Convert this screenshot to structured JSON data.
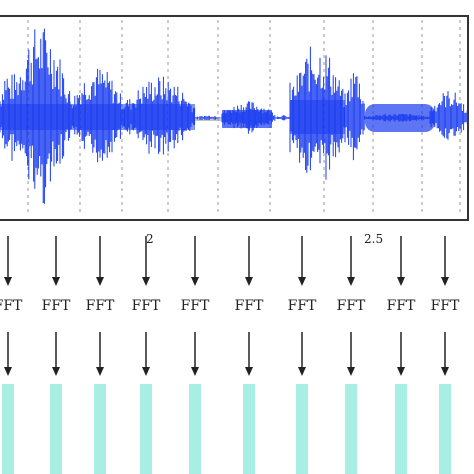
{
  "waveform": {
    "time_ticks": [
      {
        "label": "2"
      },
      {
        "label": "2.5"
      }
    ],
    "segments": [
      {
        "kind": "voiced",
        "loudness": 0.55
      },
      {
        "kind": "voiced",
        "loudness": 1.0
      },
      {
        "kind": "voiced",
        "loudness": 0.55
      },
      {
        "kind": "voiced",
        "loudness": 0.45
      },
      {
        "kind": "silence",
        "loudness": 0.03
      },
      {
        "kind": "voiced",
        "loudness": 0.18
      },
      {
        "kind": "silence",
        "loudness": 0.03
      },
      {
        "kind": "voiced",
        "loudness": 0.8
      },
      {
        "kind": "voiced",
        "loudness": 0.55
      },
      {
        "kind": "silence",
        "loudness": 0.05
      },
      {
        "kind": "voiced",
        "loudness": 0.3
      }
    ],
    "color": "#1a3cf0"
  },
  "frames": [
    {
      "label": "FFT"
    },
    {
      "label": "FFT"
    },
    {
      "label": "FFT"
    },
    {
      "label": "FFT"
    },
    {
      "label": "FFT"
    },
    {
      "label": "FFT"
    },
    {
      "label": "FFT"
    },
    {
      "label": "FFT"
    },
    {
      "label": "FFT"
    },
    {
      "label": "FFT"
    }
  ],
  "colors": {
    "spectrum_bar": "#a8eee2",
    "arrow": "#222222",
    "divider": "#999999",
    "frame_border": "#333333"
  }
}
